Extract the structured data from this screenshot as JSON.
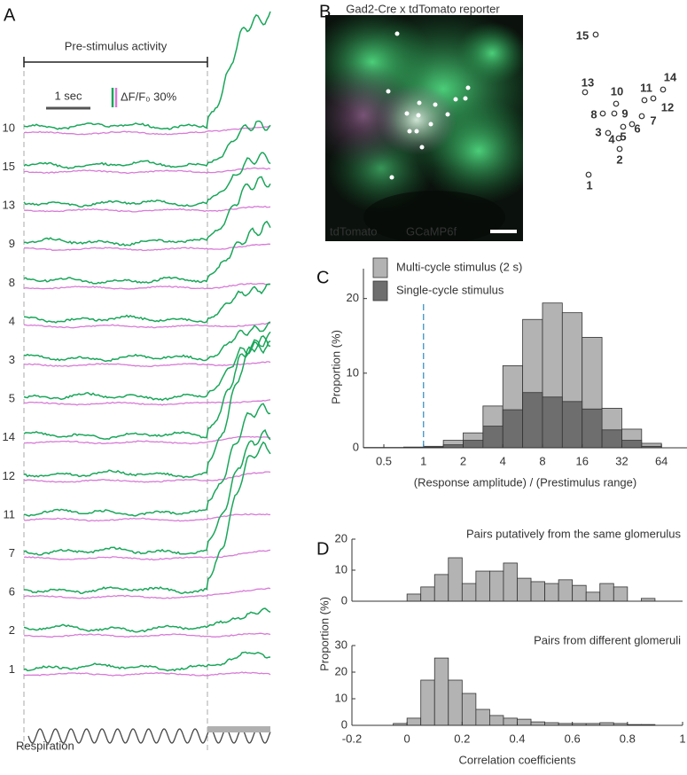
{
  "panel_labels": [
    "A",
    "B",
    "C",
    "D"
  ],
  "panel_a": {
    "bracket_label": "Pre-stimulus activity",
    "time_scale": "1 sec",
    "dff_scale": "ΔF/F₀ 30%",
    "respiration_label": "Respiration",
    "trace_color": "#1aa65a",
    "reference_color": "#d77bd6",
    "rows": [
      {
        "label": "10",
        "color": "#e3574f"
      },
      {
        "label": "15",
        "color": "#555555"
      },
      {
        "label": "13",
        "color": "#e3574f"
      },
      {
        "label": "9",
        "color": "#e3574f"
      },
      {
        "label": "8",
        "color": "#e3574f"
      },
      {
        "label": "4",
        "color": "#555555"
      },
      {
        "label": "3",
        "color": "#e3574f"
      },
      {
        "label": "5",
        "color": "#e3574f"
      },
      {
        "label": "14",
        "color": "#e3574f"
      },
      {
        "label": "12",
        "color": "#e3574f"
      },
      {
        "label": "11",
        "color": "#e3574f"
      },
      {
        "label": "7",
        "color": "#555555"
      },
      {
        "label": "6",
        "color": "#e3574f"
      },
      {
        "label": "2",
        "color": "#e3574f"
      },
      {
        "label": "1",
        "color": "#e3574f"
      }
    ]
  },
  "panel_b": {
    "title": "Gad2-Cre x tdTomato reporter",
    "channel_labels": [
      "tdTomato",
      "GCaMP6f"
    ],
    "channel_colors": [
      "#d57fc8",
      "#2fc36a"
    ],
    "roi_labels": [
      "15",
      "13",
      "10",
      "11",
      "14",
      "12",
      "8",
      "9",
      "7",
      "6",
      "3",
      "4",
      "5",
      "2",
      "1"
    ]
  },
  "chart_data": [
    {
      "type": "histogram",
      "log_x": true,
      "bins": [
        0.354,
        0.5,
        0.707,
        1,
        1.414,
        2,
        2.828,
        4,
        5.657,
        8,
        11.31,
        16,
        22.63,
        32,
        45.25,
        64
      ],
      "series": [
        {
          "name": "Multi-cycle stimulus (2 s)",
          "color": "#b3b3b3",
          "values": [
            0.05,
            0.05,
            0.1,
            0.2,
            1.0,
            2.0,
            5.6,
            11.0,
            17.2,
            19.4,
            18.1,
            14.8,
            5.3,
            2.5,
            0.6
          ]
        },
        {
          "name": "Single-cycle stimulus",
          "color": "#6e6e6e",
          "values": [
            0,
            0,
            0,
            0.1,
            0.4,
            1.0,
            2.9,
            5.1,
            7.4,
            6.8,
            6.2,
            5.2,
            2.4,
            1.0,
            0.2
          ]
        }
      ],
      "xlim": [
        0.35,
        100
      ],
      "xticks": [
        0.5,
        1,
        2,
        4,
        8,
        16,
        32,
        64
      ],
      "ylim": [
        0,
        24
      ],
      "yticks": [
        0,
        10,
        20
      ],
      "reference_line_x": 1,
      "legend": "upper-left",
      "xlabel": "(Response amplitude) / (Prestimulus range)",
      "ylabel": "Proportion (%)"
    },
    {
      "type": "histogram",
      "title": "Pairs putatively from the same glomerulus",
      "color": "#b3b3b3",
      "bins": [
        0,
        0.05,
        0.1,
        0.15,
        0.2,
        0.25,
        0.3,
        0.35,
        0.4,
        0.45,
        0.5,
        0.55,
        0.6,
        0.65,
        0.7,
        0.75,
        0.8,
        0.85,
        0.9
      ],
      "values": [
        2.3,
        4.6,
        8.6,
        14.0,
        5.7,
        9.7,
        9.7,
        12.3,
        7.4,
        6.3,
        5.7,
        6.9,
        5.1,
        2.9,
        5.7,
        4.6,
        0,
        0.9
      ],
      "xlim": [
        -0.2,
        1
      ],
      "ylim": [
        0,
        20
      ],
      "yticks": [
        0,
        10,
        20
      ],
      "ylabel": "Proportion (%)"
    },
    {
      "type": "histogram",
      "title": "Pairs from different glomeruli",
      "color": "#b3b3b3",
      "bins": [
        -0.05,
        0,
        0.05,
        0.1,
        0.15,
        0.2,
        0.25,
        0.3,
        0.35,
        0.4,
        0.45,
        0.5,
        0.55,
        0.6,
        0.65,
        0.7,
        0.75,
        0.8,
        0.85,
        0.9
      ],
      "values": [
        0.7,
        2.7,
        17,
        25.3,
        17,
        12,
        6,
        3.7,
        2.7,
        2.3,
        1.3,
        1,
        0.7,
        0.7,
        0.7,
        1,
        0.7,
        0.3,
        0.3
      ],
      "xlim": [
        -0.2,
        1
      ],
      "xticks": [
        -0.2,
        0,
        0.2,
        0.4,
        0.6,
        0.8,
        1
      ],
      "ylim": [
        0,
        30
      ],
      "yticks": [
        0,
        10,
        20,
        30
      ],
      "xlabel": "Correlation coefficients"
    }
  ]
}
